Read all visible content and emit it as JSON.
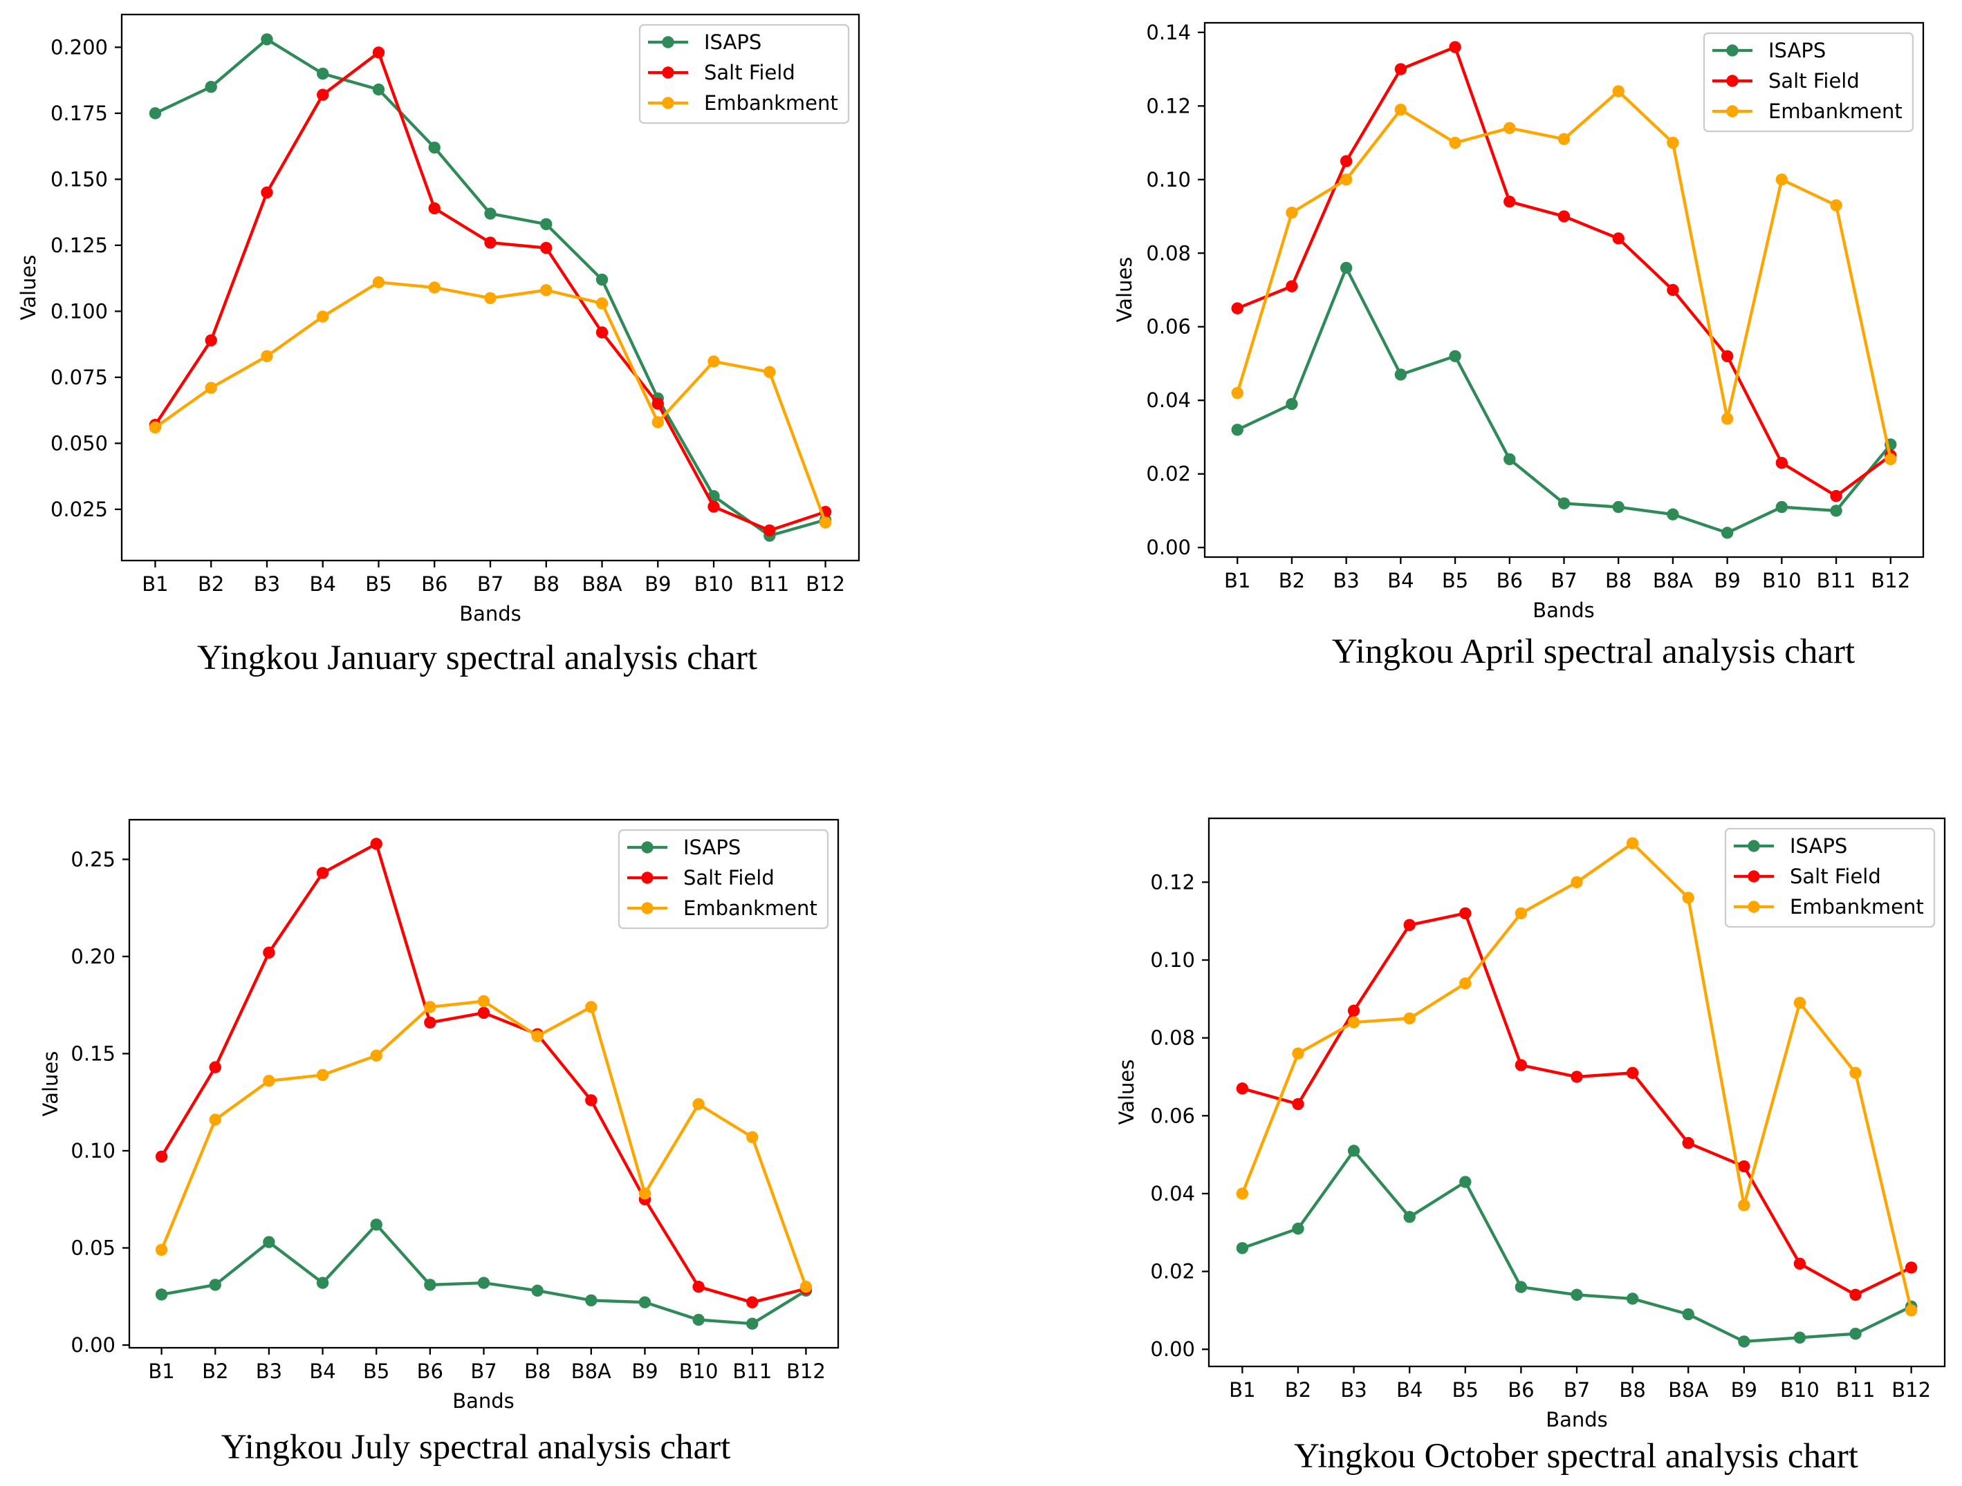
{
  "chart_data": [
    {
      "type": "line",
      "caption": "Yingkou January spectral analysis chart",
      "xlabel": "Bands",
      "ylabel": "Values",
      "legend": "upper right",
      "grid": false,
      "categories": [
        "B1",
        "B2",
        "B3",
        "B4",
        "B5",
        "B6",
        "B7",
        "B8",
        "B8A",
        "B9",
        "B10",
        "B11",
        "B12"
      ],
      "ylim": [
        0.0056,
        0.2124
      ],
      "yticks": [
        0.025,
        0.05,
        0.075,
        0.1,
        0.125,
        0.15,
        0.175,
        0.2
      ],
      "ytick_labels": [
        "0.025",
        "0.050",
        "0.075",
        "0.100",
        "0.125",
        "0.150",
        "0.175",
        "0.200"
      ],
      "series": [
        {
          "name": "ISAPS",
          "color": "#2e8b57",
          "values": [
            0.175,
            0.185,
            0.203,
            0.19,
            0.184,
            0.162,
            0.137,
            0.133,
            0.112,
            0.067,
            0.03,
            0.015,
            0.021
          ]
        },
        {
          "name": "Salt Field",
          "color": "#ff0000",
          "values": [
            0.057,
            0.089,
            0.145,
            0.182,
            0.198,
            0.139,
            0.126,
            0.124,
            0.092,
            0.065,
            0.026,
            0.017,
            0.024
          ]
        },
        {
          "name": "Embankment",
          "color": "#ffa500",
          "values": [
            0.056,
            0.071,
            0.083,
            0.098,
            0.111,
            0.109,
            0.105,
            0.108,
            0.103,
            0.058,
            0.081,
            0.077,
            0.02
          ]
        }
      ]
    },
    {
      "type": "line",
      "caption": "Yingkou April spectral analysis chart",
      "xlabel": "Bands",
      "ylabel": "Values",
      "legend": "upper right",
      "grid": false,
      "categories": [
        "B1",
        "B2",
        "B3",
        "B4",
        "B5",
        "B6",
        "B7",
        "B8",
        "B8A",
        "B9",
        "B10",
        "B11",
        "B12"
      ],
      "ylim": [
        -0.0026,
        0.1426
      ],
      "yticks": [
        0.0,
        0.02,
        0.04,
        0.06,
        0.08,
        0.1,
        0.12,
        0.14
      ],
      "ytick_labels": [
        "0.00",
        "0.02",
        "0.04",
        "0.06",
        "0.08",
        "0.10",
        "0.12",
        "0.14"
      ],
      "series": [
        {
          "name": "ISAPS",
          "color": "#2e8b57",
          "values": [
            0.032,
            0.039,
            0.076,
            0.047,
            0.052,
            0.024,
            0.012,
            0.011,
            0.009,
            0.004,
            0.011,
            0.01,
            0.028
          ]
        },
        {
          "name": "Salt Field",
          "color": "#ff0000",
          "values": [
            0.065,
            0.071,
            0.105,
            0.13,
            0.136,
            0.094,
            0.09,
            0.084,
            0.07,
            0.052,
            0.023,
            0.014,
            0.025
          ]
        },
        {
          "name": "Embankment",
          "color": "#ffa500",
          "values": [
            0.042,
            0.091,
            0.1,
            0.119,
            0.11,
            0.114,
            0.111,
            0.124,
            0.11,
            0.035,
            0.1,
            0.093,
            0.024
          ]
        }
      ]
    },
    {
      "type": "line",
      "caption": "Yingkou July spectral analysis chart",
      "xlabel": "Bands",
      "ylabel": "Values",
      "legend": "upper right",
      "grid": false,
      "categories": [
        "B1",
        "B2",
        "B3",
        "B4",
        "B5",
        "B6",
        "B7",
        "B8",
        "B8A",
        "B9",
        "B10",
        "B11",
        "B12"
      ],
      "ylim": [
        -0.0014,
        0.2704
      ],
      "yticks": [
        0.0,
        0.05,
        0.1,
        0.15,
        0.2,
        0.25
      ],
      "ytick_labels": [
        "0.00",
        "0.05",
        "0.10",
        "0.15",
        "0.20",
        "0.25"
      ],
      "series": [
        {
          "name": "ISAPS",
          "color": "#2e8b57",
          "values": [
            0.026,
            0.031,
            0.053,
            0.032,
            0.062,
            0.031,
            0.032,
            0.028,
            0.023,
            0.022,
            0.013,
            0.011,
            0.028
          ]
        },
        {
          "name": "Salt Field",
          "color": "#ff0000",
          "values": [
            0.097,
            0.143,
            0.202,
            0.243,
            0.258,
            0.166,
            0.171,
            0.16,
            0.126,
            0.075,
            0.03,
            0.022,
            0.029
          ]
        },
        {
          "name": "Embankment",
          "color": "#ffa500",
          "values": [
            0.049,
            0.116,
            0.136,
            0.139,
            0.149,
            0.174,
            0.177,
            0.159,
            0.174,
            0.078,
            0.124,
            0.107,
            0.03
          ]
        }
      ]
    },
    {
      "type": "line",
      "caption": "Yingkou October spectral analysis chart",
      "xlabel": "Bands",
      "ylabel": "Values",
      "legend": "upper right",
      "grid": false,
      "categories": [
        "B1",
        "B2",
        "B3",
        "B4",
        "B5",
        "B6",
        "B7",
        "B8",
        "B8A",
        "B9",
        "B10",
        "B11",
        "B12"
      ],
      "ylim": [
        -0.0044,
        0.1364
      ],
      "yticks": [
        0.0,
        0.02,
        0.04,
        0.06,
        0.08,
        0.1,
        0.12
      ],
      "ytick_labels": [
        "0.00",
        "0.02",
        "0.04",
        "0.06",
        "0.08",
        "0.10",
        "0.12"
      ],
      "series": [
        {
          "name": "ISAPS",
          "color": "#2e8b57",
          "values": [
            0.026,
            0.031,
            0.051,
            0.034,
            0.043,
            0.016,
            0.014,
            0.013,
            0.009,
            0.002,
            0.003,
            0.004,
            0.011
          ]
        },
        {
          "name": "Salt Field",
          "color": "#ff0000",
          "values": [
            0.067,
            0.063,
            0.087,
            0.109,
            0.112,
            0.073,
            0.07,
            0.071,
            0.053,
            0.047,
            0.022,
            0.014,
            0.021
          ]
        },
        {
          "name": "Embankment",
          "color": "#ffa500",
          "values": [
            0.04,
            0.076,
            0.084,
            0.085,
            0.094,
            0.112,
            0.12,
            0.13,
            0.116,
            0.037,
            0.089,
            0.071,
            0.01
          ]
        }
      ]
    }
  ]
}
